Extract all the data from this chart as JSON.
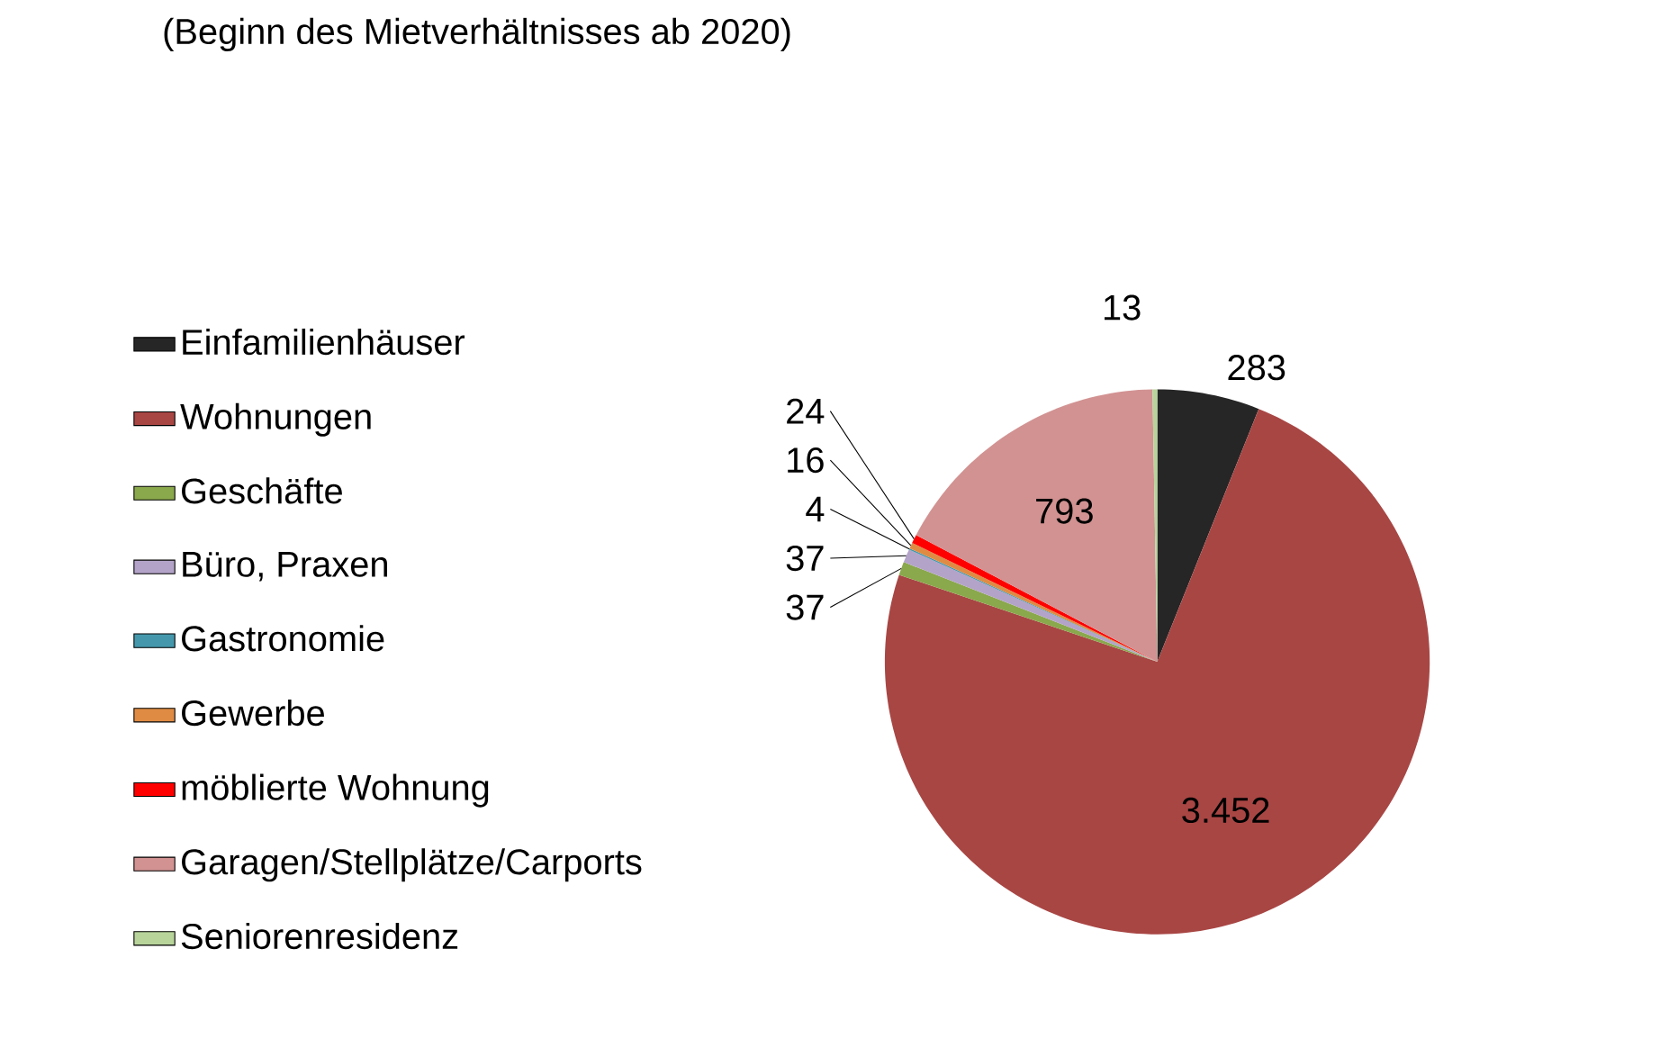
{
  "chart_data": {
    "type": "pie",
    "title": "(Beginn des Mietverhältnisses ab 2020)",
    "categories": [
      "Einfamilienhäuser",
      "Wohnungen",
      "Geschäfte",
      "Büro, Praxen",
      "Gastronomie",
      "Gewerbe",
      "möblierte Wohnung",
      "Garagen/Stellplätze/Carports",
      "Seniorenresidenz"
    ],
    "values": [
      283,
      3452,
      37,
      37,
      4,
      16,
      24,
      793,
      13
    ],
    "value_labels": [
      "283",
      "3.452",
      "37",
      "37",
      "4",
      "16",
      "24",
      "793",
      "13"
    ],
    "colors": [
      "#262626",
      "#a84644",
      "#8aa84c",
      "#b3a3c8",
      "#4598ac",
      "#df8b43",
      "#ff0000",
      "#d29292",
      "#b8d49b"
    ],
    "legend": "left"
  }
}
